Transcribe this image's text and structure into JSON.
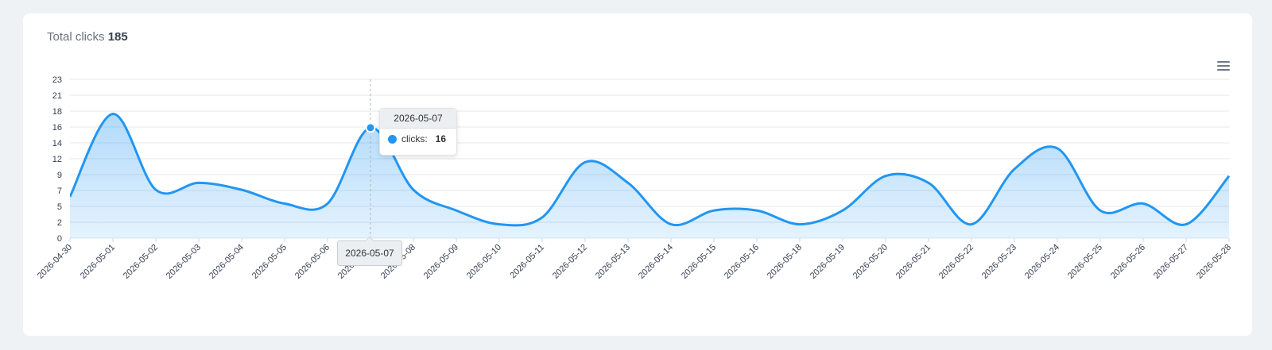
{
  "header": {
    "label": "Total clicks",
    "total": "185"
  },
  "colors": {
    "series": "#2196f3",
    "grid": "#e5e7eb"
  },
  "tooltip": {
    "date": "2026-05-07",
    "series_label": "clicks:",
    "value": "16"
  },
  "crosshair_label": "2026-05-07",
  "chart_data": {
    "type": "area",
    "x": [
      "2026-04-30",
      "2026-05-01",
      "2026-05-02",
      "2026-05-03",
      "2026-05-04",
      "2026-05-05",
      "2026-05-06",
      "2026-05-07",
      "2026-05-08",
      "2026-05-09",
      "2026-05-10",
      "2026-05-11",
      "2026-05-12",
      "2026-05-13",
      "2026-05-14",
      "2026-05-15",
      "2026-05-16",
      "2026-05-18",
      "2026-05-19",
      "2026-05-20",
      "2026-05-21",
      "2026-05-22",
      "2026-05-23",
      "2026-05-24",
      "2026-05-25",
      "2026-05-26",
      "2026-05-27",
      "2026-05-28"
    ],
    "series": [
      {
        "values": [
          6,
          18,
          7,
          8,
          7,
          5,
          5,
          16,
          7,
          4,
          2,
          3,
          11,
          8,
          2,
          4,
          4,
          2,
          4,
          9,
          8,
          2,
          10,
          13,
          4,
          5,
          2,
          9
        ]
      }
    ],
    "y_ticks": [
      "0",
      "2",
      "5",
      "7",
      "9",
      "12",
      "14",
      "16",
      "18",
      "21",
      "23"
    ],
    "ylim": [
      0,
      23
    ],
    "grid": true,
    "highlight_index": 7
  }
}
